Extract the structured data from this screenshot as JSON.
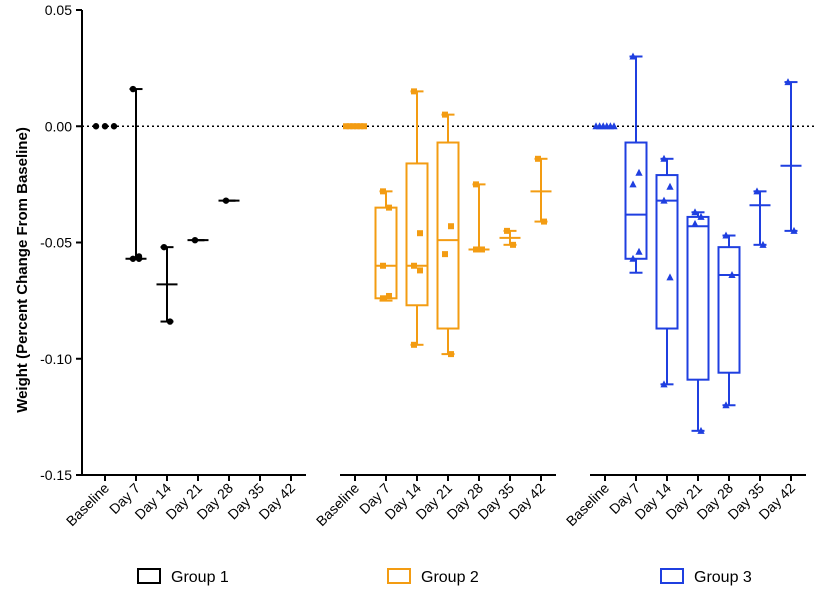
{
  "chart_data": {
    "type": "box",
    "title": "",
    "xlabel": "",
    "ylabel": "Weight (Percent Change From Baseline)",
    "ylim": [
      -0.15,
      0.05
    ],
    "yticks": [
      0.05,
      0.0,
      -0.05,
      -0.1,
      -0.15
    ],
    "ytick_labels": [
      "0.05",
      "0.00",
      "-0.05",
      "-0.10",
      "-0.15"
    ],
    "reference_line": 0.0,
    "categories": [
      "Baseline",
      "Day 7",
      "Day 14",
      "Day 21",
      "Day 28",
      "Day 35",
      "Day 42"
    ],
    "groups": [
      {
        "name": "Group 1",
        "color": "#000000",
        "marker": "circle",
        "boxes": [
          {
            "category": "Baseline",
            "style": "points",
            "median": 0.0,
            "points": [
              0.0,
              0.0,
              0.0
            ]
          },
          {
            "category": "Day 7",
            "style": "whisker",
            "min": -0.057,
            "q1": -0.057,
            "median": -0.057,
            "q3": -0.057,
            "max": 0.016,
            "points": [
              0.016,
              -0.057,
              -0.057,
              -0.056
            ]
          },
          {
            "category": "Day 14",
            "style": "whisker",
            "min": -0.084,
            "q1": -0.068,
            "median": -0.068,
            "q3": -0.068,
            "max": -0.052,
            "points": [
              -0.052,
              -0.084
            ]
          },
          {
            "category": "Day 21",
            "style": "whisker",
            "min": -0.049,
            "q1": -0.049,
            "median": -0.049,
            "q3": -0.049,
            "max": -0.049,
            "points": [
              -0.049
            ]
          },
          {
            "category": "Day 28",
            "style": "whisker",
            "min": -0.032,
            "q1": -0.032,
            "median": -0.032,
            "q3": -0.032,
            "max": -0.032,
            "points": [
              -0.032
            ]
          },
          {
            "category": "Day 35",
            "style": "none",
            "points": []
          },
          {
            "category": "Day 42",
            "style": "none",
            "points": []
          }
        ]
      },
      {
        "name": "Group 2",
        "color": "#f39c12",
        "marker": "square",
        "boxes": [
          {
            "category": "Baseline",
            "style": "points",
            "median": 0.0,
            "points": [
              0.0,
              0.0,
              0.0,
              0.0,
              0.0,
              0.0
            ]
          },
          {
            "category": "Day 7",
            "style": "box",
            "min": -0.075,
            "q1": -0.074,
            "median": -0.06,
            "q3": -0.035,
            "max": -0.028,
            "points": [
              -0.028,
              -0.035,
              -0.06,
              -0.073,
              -0.074
            ]
          },
          {
            "category": "Day 14",
            "style": "box",
            "min": -0.094,
            "q1": -0.077,
            "median": -0.06,
            "q3": -0.016,
            "max": 0.015,
            "points": [
              0.015,
              -0.046,
              -0.06,
              -0.062,
              -0.094
            ]
          },
          {
            "category": "Day 21",
            "style": "box",
            "min": -0.098,
            "q1": -0.087,
            "median": -0.049,
            "q3": -0.007,
            "max": 0.005,
            "points": [
              0.005,
              -0.043,
              -0.055,
              -0.098
            ]
          },
          {
            "category": "Day 28",
            "style": "whisker",
            "min": -0.053,
            "q1": -0.053,
            "median": -0.053,
            "q3": -0.053,
            "max": -0.025,
            "points": [
              -0.025,
              -0.053,
              -0.053
            ]
          },
          {
            "category": "Day 35",
            "style": "whisker",
            "min": -0.051,
            "q1": -0.048,
            "median": -0.048,
            "q3": -0.048,
            "max": -0.045,
            "points": [
              -0.045,
              -0.051
            ]
          },
          {
            "category": "Day 42",
            "style": "whisker",
            "min": -0.041,
            "q1": -0.028,
            "median": -0.028,
            "q3": -0.028,
            "max": -0.014,
            "points": [
              -0.014,
              -0.041
            ]
          }
        ]
      },
      {
        "name": "Group 3",
        "color": "#1f3fe0",
        "marker": "triangle",
        "boxes": [
          {
            "category": "Baseline",
            "style": "points",
            "median": 0.0,
            "points": [
              0.0,
              0.0,
              0.0,
              0.0,
              0.0,
              0.0
            ]
          },
          {
            "category": "Day 7",
            "style": "box",
            "min": -0.063,
            "q1": -0.057,
            "median": -0.038,
            "q3": -0.007,
            "max": 0.03,
            "points": [
              0.03,
              -0.02,
              -0.025,
              -0.054,
              -0.057
            ]
          },
          {
            "category": "Day 14",
            "style": "box",
            "min": -0.111,
            "q1": -0.087,
            "median": -0.032,
            "q3": -0.021,
            "max": -0.014,
            "points": [
              -0.014,
              -0.026,
              -0.032,
              -0.065,
              -0.111
            ]
          },
          {
            "category": "Day 21",
            "style": "box",
            "min": -0.131,
            "q1": -0.109,
            "median": -0.043,
            "q3": -0.039,
            "max": -0.037,
            "points": [
              -0.037,
              -0.039,
              -0.042,
              -0.131
            ]
          },
          {
            "category": "Day 28",
            "style": "box",
            "min": -0.12,
            "q1": -0.106,
            "median": -0.064,
            "q3": -0.052,
            "max": -0.047,
            "points": [
              -0.047,
              -0.064,
              -0.12
            ]
          },
          {
            "category": "Day 35",
            "style": "whisker",
            "min": -0.051,
            "q1": -0.034,
            "median": -0.034,
            "q3": -0.034,
            "max": -0.028,
            "points": [
              -0.028,
              -0.051
            ]
          },
          {
            "category": "Day 42",
            "style": "whisker",
            "min": -0.045,
            "q1": -0.017,
            "median": -0.017,
            "q3": -0.017,
            "max": 0.019,
            "points": [
              0.019,
              -0.045
            ]
          }
        ]
      }
    ],
    "legend": {
      "placement": "bottom",
      "entries": [
        "Group 1",
        "Group 2",
        "Group 3"
      ]
    }
  }
}
